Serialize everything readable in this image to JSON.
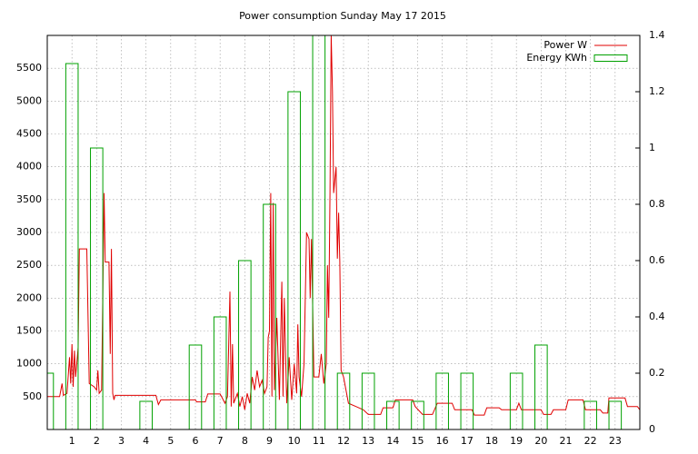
{
  "chart_data": {
    "type": "line",
    "title": "Power consumption Sunday May 17 2015",
    "xlim": [
      0,
      24
    ],
    "xticks": [
      1,
      2,
      3,
      4,
      5,
      6,
      7,
      8,
      9,
      10,
      11,
      12,
      13,
      14,
      15,
      16,
      17,
      18,
      19,
      20,
      21,
      22,
      23
    ],
    "ylim": [
      0,
      6000
    ],
    "yticks": [
      500,
      1000,
      1500,
      2000,
      2500,
      3000,
      3500,
      4000,
      4500,
      5000,
      5500
    ],
    "y2lim": [
      0,
      1.4
    ],
    "y2ticks": [
      0,
      0.2,
      0.4,
      0.6,
      0.8,
      1,
      1.2,
      1.4
    ],
    "grid": true,
    "legend": "top-right",
    "series": [
      {
        "name": "Power W",
        "color": "#e00000",
        "type": "line",
        "x": [
          0,
          0.5,
          0.6,
          0.65,
          0.8,
          0.9,
          0.95,
          1.0,
          1.05,
          1.1,
          1.15,
          1.25,
          1.3,
          1.6,
          1.7,
          1.9,
          2.0,
          2.05,
          2.1,
          2.2,
          2.3,
          2.35,
          2.5,
          2.55,
          2.6,
          2.65,
          2.7,
          2.75,
          4.0,
          4.4,
          4.5,
          4.6,
          5.0,
          6.0,
          6.05,
          6.4,
          6.5,
          7.0,
          7.2,
          7.3,
          7.4,
          7.45,
          7.5,
          7.55,
          7.7,
          7.8,
          7.9,
          8.0,
          8.1,
          8.2,
          8.3,
          8.4,
          8.5,
          8.6,
          8.7,
          8.8,
          8.9,
          8.95,
          9.0,
          9.05,
          9.1,
          9.15,
          9.2,
          9.3,
          9.4,
          9.5,
          9.55,
          9.6,
          9.7,
          9.8,
          9.9,
          10.0,
          10.1,
          10.15,
          10.2,
          10.3,
          10.4,
          10.5,
          10.6,
          10.65,
          10.7,
          10.8,
          11.0,
          11.1,
          11.2,
          11.3,
          11.35,
          11.4,
          11.45,
          11.5,
          11.55,
          11.6,
          11.7,
          11.75,
          11.8,
          11.85,
          11.9,
          12.0,
          12.1,
          12.2,
          12.5,
          12.8,
          13.0,
          13.5,
          13.6,
          14.0,
          14.1,
          14.8,
          14.9,
          15.2,
          15.6,
          15.8,
          16.4,
          16.5,
          17.2,
          17.3,
          17.7,
          17.8,
          18.3,
          18.4,
          19.0,
          19.1,
          19.2,
          20.0,
          20.1,
          20.4,
          20.5,
          21.0,
          21.1,
          21.7,
          21.8,
          22.0,
          22.4,
          22.5,
          22.7,
          22.75,
          23.4,
          23.5,
          23.9,
          24
        ],
        "values": [
          500,
          500,
          700,
          520,
          550,
          1100,
          700,
          1300,
          650,
          1200,
          800,
          1250,
          2750,
          2750,
          700,
          650,
          600,
          900,
          550,
          600,
          3600,
          2550,
          2550,
          1150,
          2750,
          550,
          450,
          520,
          520,
          520,
          380,
          450,
          450,
          450,
          420,
          420,
          540,
          540,
          400,
          500,
          2100,
          350,
          1300,
          400,
          550,
          350,
          500,
          300,
          550,
          400,
          800,
          600,
          900,
          650,
          750,
          550,
          650,
          1400,
          1500,
          3600,
          500,
          3450,
          600,
          1700,
          450,
          2250,
          500,
          2000,
          400,
          1100,
          450,
          1000,
          550,
          1600,
          800,
          500,
          1000,
          3000,
          2900,
          2000,
          2900,
          800,
          800,
          1150,
          700,
          1000,
          2500,
          1700,
          3600,
          6000,
          5150,
          3600,
          4000,
          2600,
          3300,
          2550,
          900,
          800,
          600,
          400,
          350,
          300,
          230,
          230,
          330,
          330,
          450,
          450,
          350,
          230,
          230,
          400,
          400,
          300,
          300,
          220,
          220,
          330,
          330,
          300,
          300,
          400,
          300,
          300,
          230,
          230,
          300,
          300,
          450,
          450,
          300,
          300,
          300,
          250,
          250,
          480,
          480,
          350,
          350,
          300
        ]
      },
      {
        "name": "Energy KWh",
        "color": "#00a000",
        "type": "bar",
        "axis": "y2",
        "x": [
          0,
          1,
          2,
          3,
          4,
          5,
          6,
          7,
          8,
          9,
          10,
          11,
          12,
          13,
          14,
          15,
          16,
          17,
          18,
          19,
          20,
          21,
          22,
          23
        ],
        "values": [
          0.2,
          1.3,
          1.0,
          0,
          0.1,
          0,
          0.3,
          0.4,
          0.6,
          0.8,
          1.2,
          1.4,
          0.2,
          0.2,
          0.1,
          0.1,
          0.2,
          0.2,
          0,
          0.2,
          0.3,
          0,
          0.1,
          0.1
        ]
      }
    ]
  }
}
